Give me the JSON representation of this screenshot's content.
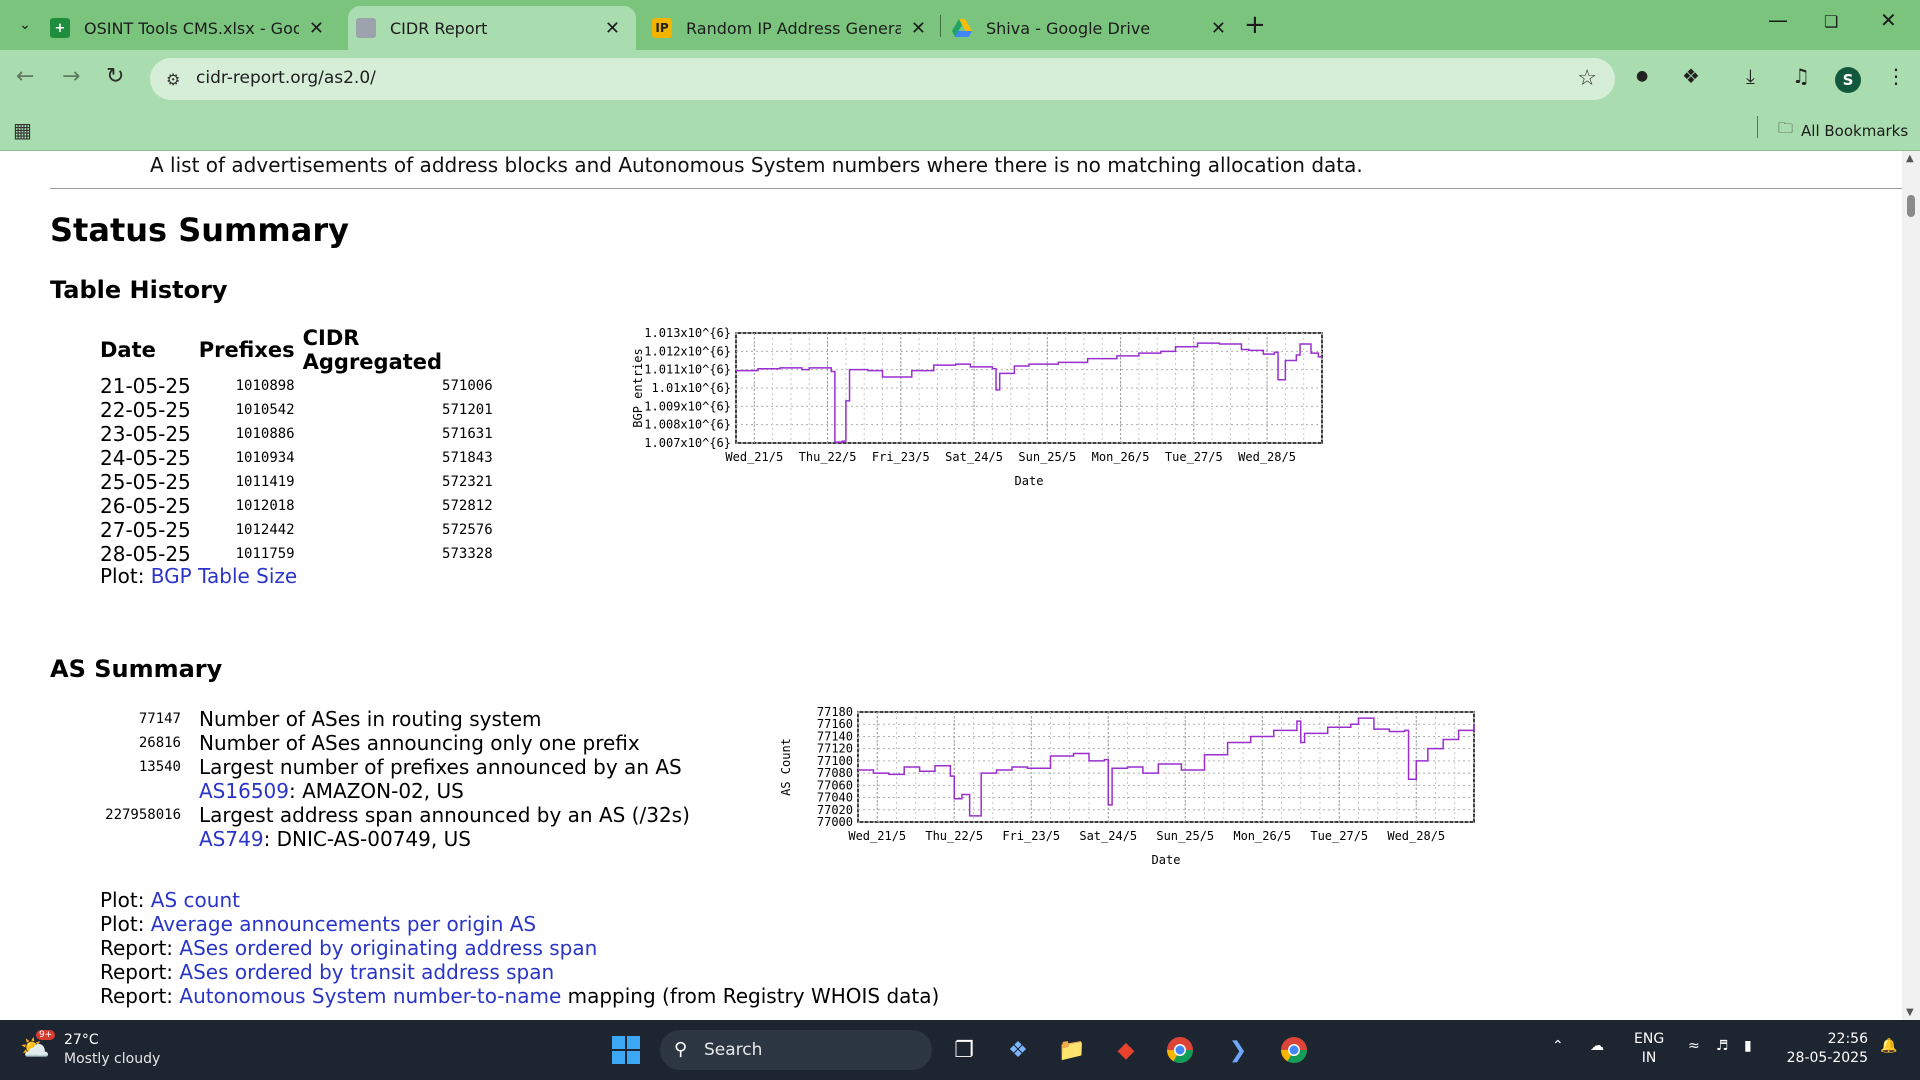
{
  "browser": {
    "tabs": [
      {
        "title": "OSINT Tools CMS.xlsx - Google",
        "icon": "sheets-icon"
      },
      {
        "title": "CIDR Report",
        "icon": "page-icon"
      },
      {
        "title": "Random IP Address Generator,",
        "icon": "ip-icon"
      },
      {
        "title": "Shiva - Google Drive",
        "icon": "drive-icon"
      }
    ],
    "active_tab": 1,
    "ip_favicon_text": "IP",
    "url": "cidr-report.org/as2.0/",
    "profile_initial": "S",
    "all_bookmarks": "All Bookmarks"
  },
  "page": {
    "intro": "A list of advertisements of address blocks and Autonomous System numbers where there is no matching allocation data.",
    "status_summary": "Status Summary",
    "table_history": {
      "heading": "Table History",
      "columns": [
        "Date",
        "Prefixes",
        "CIDR Aggregated"
      ],
      "rows": [
        [
          "21-05-25",
          "1010898",
          "571006"
        ],
        [
          "22-05-25",
          "1010542",
          "571201"
        ],
        [
          "23-05-25",
          "1010886",
          "571631"
        ],
        [
          "24-05-25",
          "1010934",
          "571843"
        ],
        [
          "25-05-25",
          "1011419",
          "572321"
        ],
        [
          "26-05-25",
          "1012018",
          "572812"
        ],
        [
          "27-05-25",
          "1012442",
          "572576"
        ],
        [
          "28-05-25",
          "1011759",
          "573328"
        ]
      ],
      "plot_prefix": "Plot:",
      "plot_link": "BGP Table Size"
    },
    "as_summary": {
      "heading": "AS Summary",
      "items": [
        {
          "value": "77147",
          "text": "Number of ASes in routing system"
        },
        {
          "value": "26816",
          "text": "Number of ASes announcing only one prefix"
        },
        {
          "value": "13540",
          "text": "Largest number of prefixes announced by an AS",
          "link": "AS16509",
          "link_suffix": ": AMAZON-02, US"
        },
        {
          "value": "227958016",
          "text": "Largest address span announced by an AS (/32s)",
          "link": "AS749",
          "link_suffix": ": DNIC-AS-00749, US"
        }
      ],
      "links": [
        {
          "prefix": "Plot:",
          "label": "AS count",
          "suffix": ""
        },
        {
          "prefix": "Plot:",
          "label": "Average announcements per origin AS",
          "suffix": ""
        },
        {
          "prefix": "Report:",
          "label": "ASes ordered by originating address span",
          "suffix": ""
        },
        {
          "prefix": "Report:",
          "label": "ASes ordered by transit address span",
          "suffix": ""
        },
        {
          "prefix": "Report:",
          "label": "Autonomous System number-to-name",
          "suffix": " mapping (from Registry WHOIS data)"
        }
      ]
    }
  },
  "chart_data": [
    {
      "type": "line",
      "ylabel": "BGP entries",
      "xlabel": "Date",
      "y_tick_labels": [
        "1.013x10^{6}",
        "1.012x10^{6}",
        "1.011x10^{6}",
        "1.01x10^{6}",
        "1.009x10^{6}",
        "1.008x10^{6}",
        "1.007x10^{6}"
      ],
      "ylim": [
        1007000,
        1013000
      ],
      "x_tick_labels": [
        "Wed_21/5",
        "Thu_22/5",
        "Fri_23/5",
        "Sat_24/5",
        "Sun_25/5",
        "Mon_26/5",
        "Tue_27/5",
        "Wed_28/5"
      ],
      "xlim": [
        0,
        8
      ],
      "grid": true,
      "color": "#9a2fd0",
      "x": [
        0,
        0.3,
        0.6,
        0.9,
        1.0,
        1.3,
        1.35,
        1.45,
        1.5,
        1.55,
        1.8,
        2.0,
        2.4,
        2.7,
        3.0,
        3.2,
        3.5,
        3.55,
        3.6,
        3.8,
        4.0,
        4.4,
        4.8,
        5.2,
        5.5,
        5.8,
        6.0,
        6.3,
        6.6,
        6.9,
        7.0,
        7.2,
        7.35,
        7.4,
        7.5,
        7.65,
        7.7,
        7.85,
        7.95
      ],
      "y": [
        1010950,
        1011050,
        1011100,
        1011000,
        1011100,
        1010900,
        1007050,
        1007100,
        1009300,
        1011000,
        1010950,
        1010600,
        1010950,
        1011250,
        1011300,
        1011150,
        1011050,
        1009900,
        1010800,
        1011200,
        1011300,
        1011400,
        1011600,
        1011750,
        1011900,
        1012000,
        1012250,
        1012450,
        1012400,
        1012100,
        1012050,
        1011850,
        1011950,
        1010450,
        1011500,
        1011800,
        1012400,
        1011900,
        1011700
      ]
    },
    {
      "type": "line",
      "ylabel": "AS Count",
      "xlabel": "Date",
      "y_tick_labels": [
        "77180",
        "77160",
        "77140",
        "77120",
        "77100",
        "77080",
        "77060",
        "77040",
        "77020",
        "77000"
      ],
      "ylim": [
        77000,
        77180
      ],
      "x_tick_labels": [
        "Wed_21/5",
        "Thu_22/5",
        "Fri_23/5",
        "Sat_24/5",
        "Sun_25/5",
        "Mon_26/5",
        "Tue_27/5",
        "Wed_28/5"
      ],
      "xlim": [
        0,
        8
      ],
      "grid": true,
      "color": "#9a2fd0",
      "x": [
        0,
        0.2,
        0.4,
        0.6,
        0.8,
        1.0,
        1.2,
        1.25,
        1.35,
        1.45,
        1.6,
        1.8,
        2.0,
        2.2,
        2.5,
        2.8,
        3.0,
        3.2,
        3.25,
        3.3,
        3.5,
        3.7,
        3.9,
        4.2,
        4.5,
        4.8,
        5.1,
        5.4,
        5.7,
        5.75,
        5.8,
        6.1,
        6.4,
        6.5,
        6.7,
        6.9,
        7.1,
        7.15,
        7.25,
        7.4,
        7.6,
        7.8,
        8.0
      ],
      "y": [
        77085,
        77080,
        77078,
        77090,
        77083,
        77092,
        77075,
        77038,
        77045,
        77010,
        77080,
        77085,
        77090,
        77088,
        77108,
        77112,
        77100,
        77102,
        77028,
        77088,
        77090,
        77080,
        77095,
        77085,
        77110,
        77130,
        77140,
        77150,
        77165,
        77130,
        77145,
        77155,
        77160,
        77170,
        77152,
        77148,
        77150,
        77070,
        77100,
        77120,
        77135,
        77150,
        77160
      ]
    }
  ],
  "taskbar": {
    "weather_temp": "27°C",
    "weather_cond": "Mostly cloudy",
    "weather_badge": "9+",
    "search": "Search",
    "lang_top": "ENG",
    "lang_bottom": "IN",
    "time": "22:56",
    "date": "28-05-2025"
  }
}
